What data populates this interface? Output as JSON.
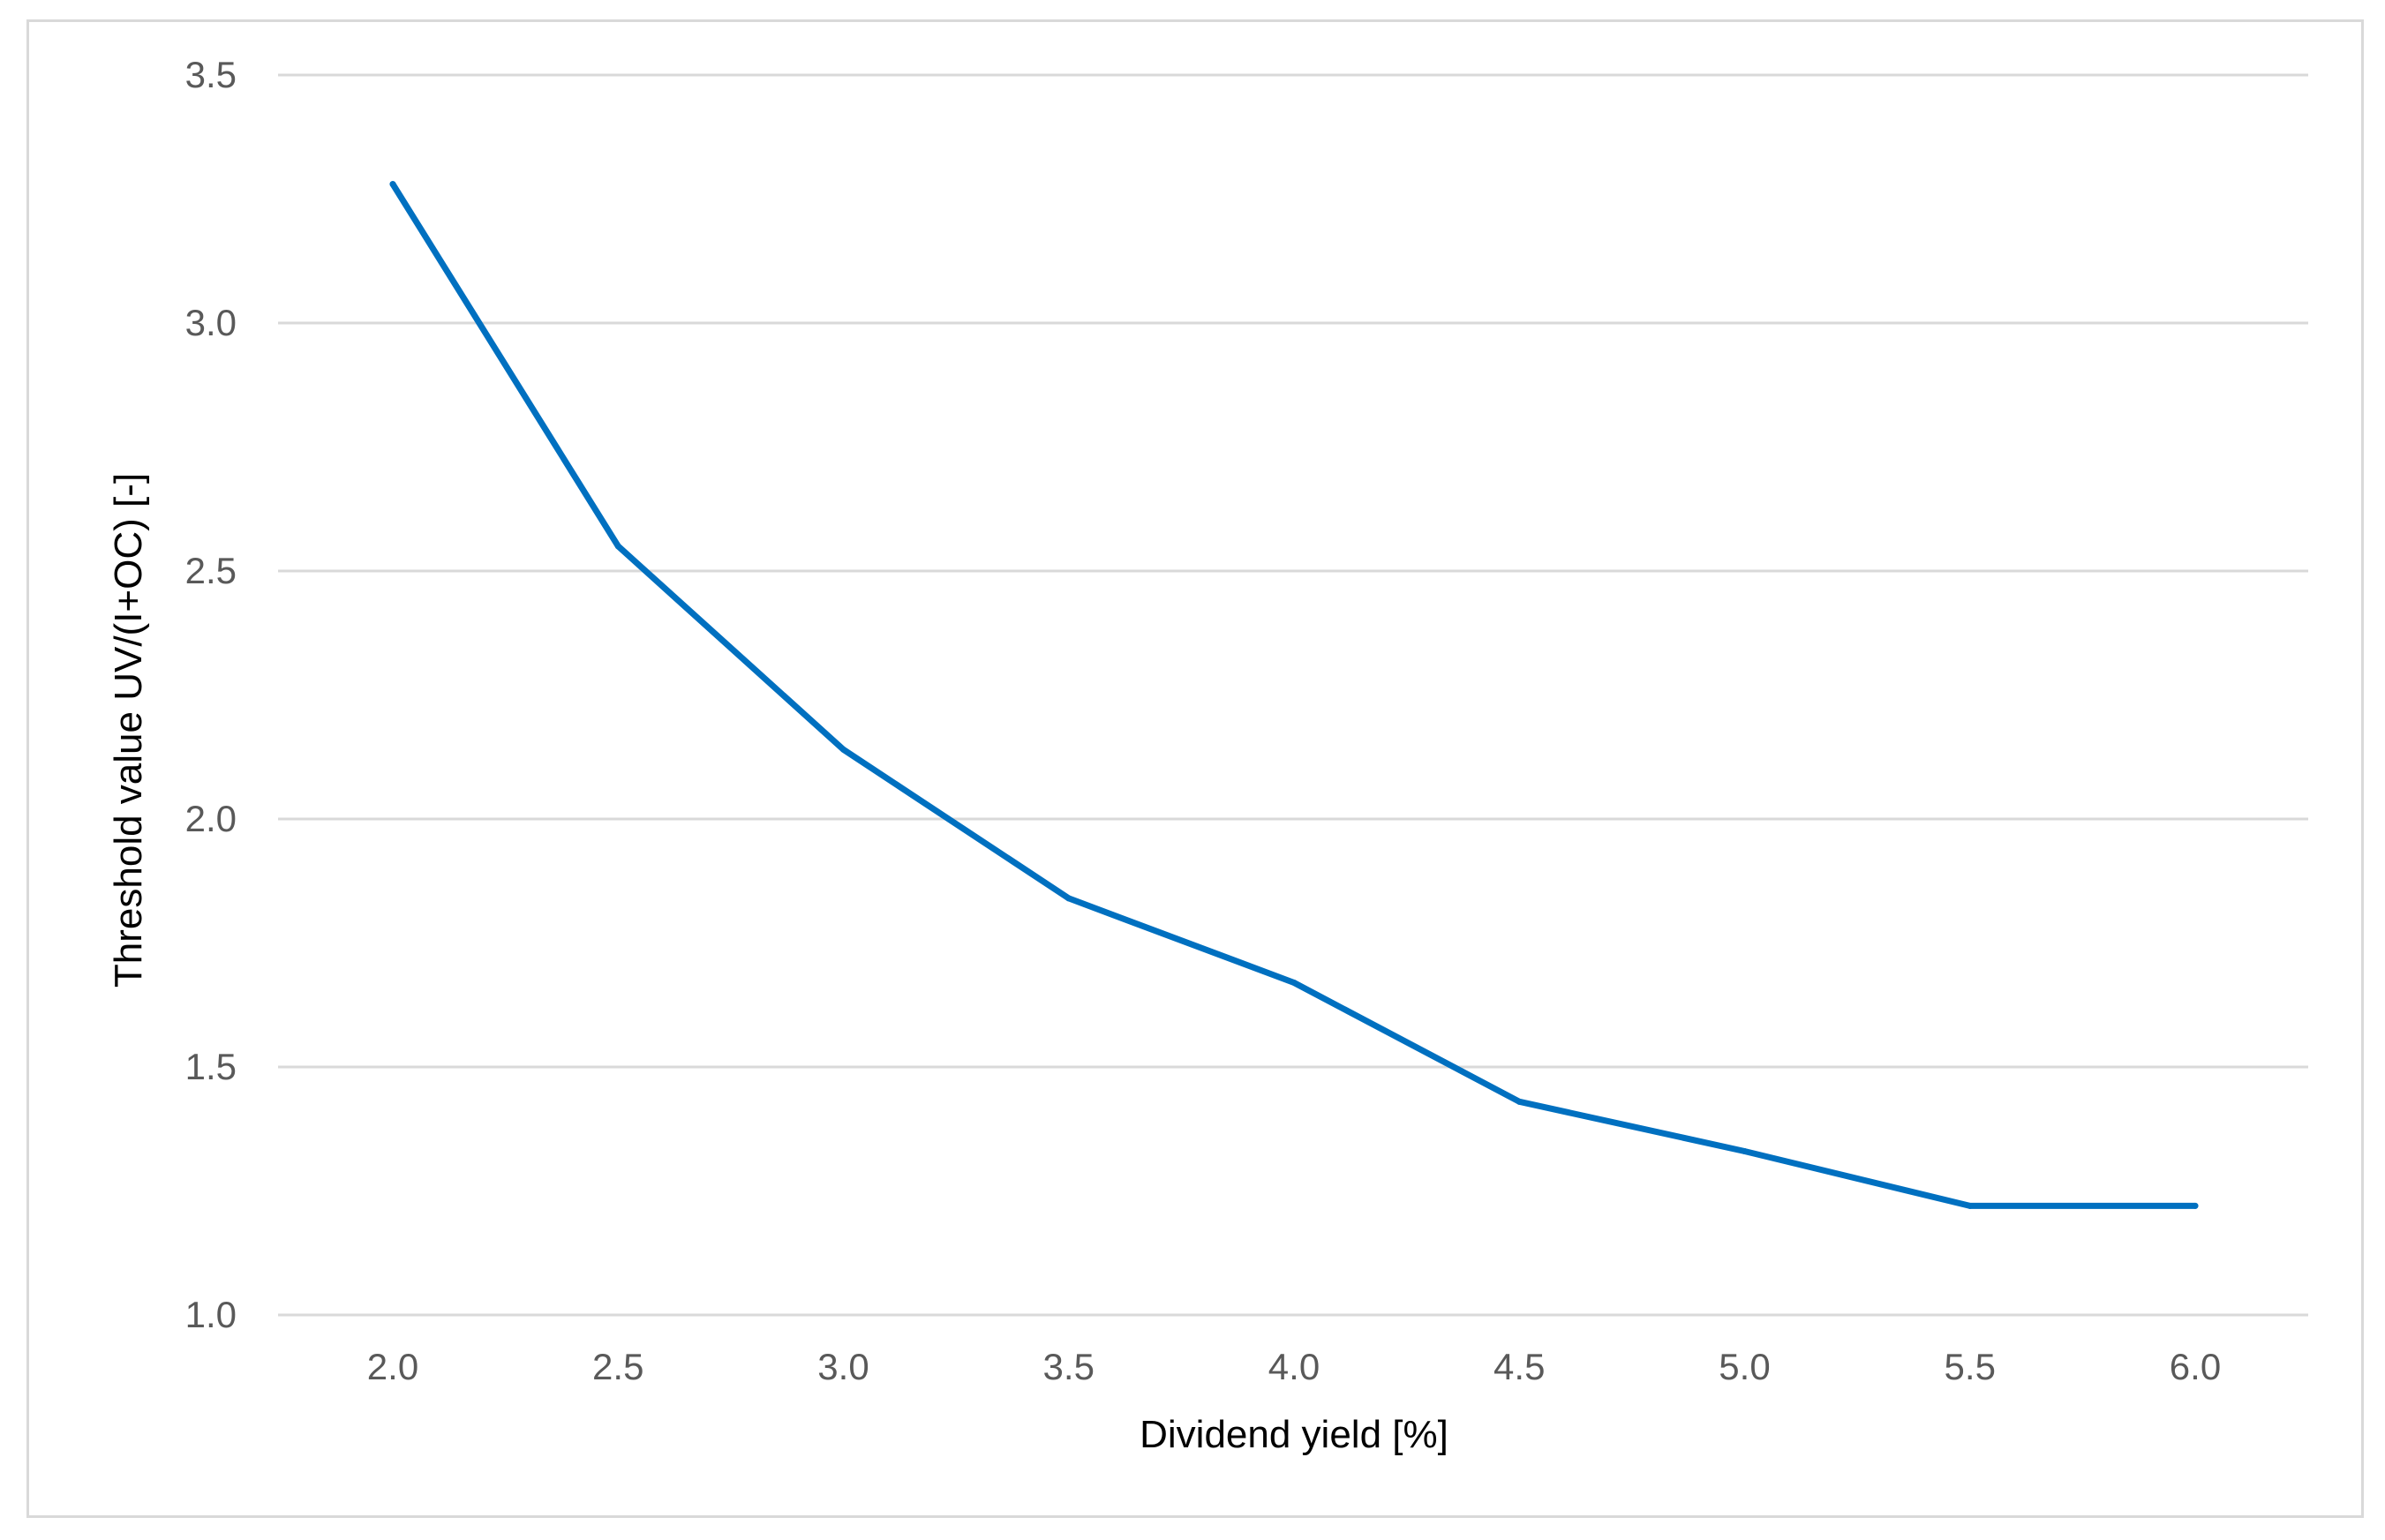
{
  "chart_data": {
    "type": "line",
    "title": "",
    "xlabel": "Dividend yield [%]",
    "ylabel": "Threshold value UV/(I+OC) [-]",
    "x": [
      2.0,
      2.5,
      3.0,
      3.5,
      4.0,
      4.5,
      5.0,
      5.5,
      6.0
    ],
    "x_tick_labels": [
      "2.0",
      "2.5",
      "3.0",
      "3.5",
      "4.0",
      "4.5",
      "5.0",
      "5.5",
      "6.0"
    ],
    "y_tick_labels": [
      "1.0",
      "1.5",
      "2.0",
      "2.5",
      "3.0",
      "3.5"
    ],
    "y_ticks": [
      1.0,
      1.5,
      2.0,
      2.5,
      3.0,
      3.5
    ],
    "ylim": [
      1.0,
      3.5
    ],
    "grid": true,
    "legend": "none",
    "series": [
      {
        "color": "#0070c0",
        "values": [
          3.28,
          2.55,
          2.14,
          1.84,
          1.67,
          1.43,
          1.33,
          1.22,
          1.22
        ]
      }
    ]
  }
}
